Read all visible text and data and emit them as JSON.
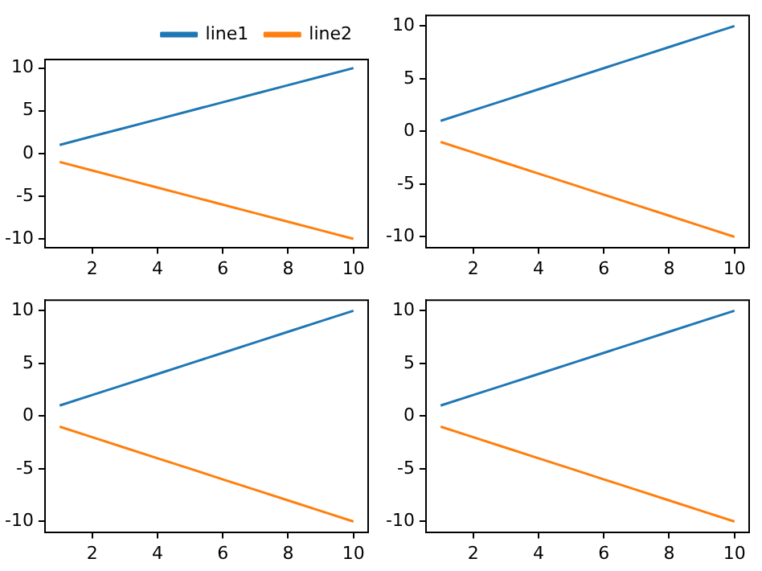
{
  "chart_data": [
    {
      "type": "line",
      "x": [
        1,
        2,
        3,
        4,
        5,
        6,
        7,
        8,
        9,
        10
      ],
      "series": [
        {
          "name": "line1",
          "color": "#1f77b4",
          "values": [
            1,
            2,
            3,
            4,
            5,
            6,
            7,
            8,
            9,
            10
          ]
        },
        {
          "name": "line2",
          "color": "#ff7f0e",
          "values": [
            -1,
            -2,
            -3,
            -4,
            -5,
            -6,
            -7,
            -8,
            -9,
            -10
          ]
        }
      ],
      "xlim": [
        0.55,
        10.45
      ],
      "ylim": [
        -11,
        11
      ],
      "xticks": [
        2,
        4,
        6,
        8,
        10
      ],
      "yticks": [
        -10,
        -5,
        0,
        5,
        10
      ],
      "grid": false,
      "legend": "top right",
      "marker": "none",
      "line_style": "solid"
    },
    {
      "type": "line",
      "x": [
        1,
        2,
        3,
        4,
        5,
        6,
        7,
        8,
        9,
        10
      ],
      "series": [
        {
          "color": "#1f77b4",
          "values": [
            1,
            2,
            3,
            4,
            5,
            6,
            7,
            8,
            9,
            10
          ]
        },
        {
          "color": "#ff7f0e",
          "values": [
            -1,
            -2,
            -3,
            -4,
            -5,
            -6,
            -7,
            -8,
            -9,
            -10
          ]
        }
      ],
      "xlim": [
        0.55,
        10.45
      ],
      "ylim": [
        -11,
        11
      ],
      "xticks": [
        2,
        4,
        6,
        8,
        10
      ],
      "yticks": [
        -10,
        -5,
        0,
        5,
        10
      ],
      "grid": false,
      "marker": "none",
      "line_style": "solid"
    },
    {
      "type": "line",
      "x": [
        1,
        2,
        3,
        4,
        5,
        6,
        7,
        8,
        9,
        10
      ],
      "series": [
        {
          "color": "#1f77b4",
          "values": [
            1,
            2,
            3,
            4,
            5,
            6,
            7,
            8,
            9,
            10
          ]
        },
        {
          "color": "#ff7f0e",
          "values": [
            -1,
            -2,
            -3,
            -4,
            -5,
            -6,
            -7,
            -8,
            -9,
            -10
          ]
        }
      ],
      "xlim": [
        0.55,
        10.45
      ],
      "ylim": [
        -11,
        11
      ],
      "xticks": [
        2,
        4,
        6,
        8,
        10
      ],
      "yticks": [
        -10,
        -5,
        0,
        5,
        10
      ],
      "grid": false,
      "marker": "none",
      "line_style": "solid"
    },
    {
      "type": "line",
      "x": [
        1,
        2,
        3,
        4,
        5,
        6,
        7,
        8,
        9,
        10
      ],
      "series": [
        {
          "color": "#1f77b4",
          "values": [
            1,
            2,
            3,
            4,
            5,
            6,
            7,
            8,
            9,
            10
          ]
        },
        {
          "color": "#ff7f0e",
          "values": [
            -1,
            -2,
            -3,
            -4,
            -5,
            -6,
            -7,
            -8,
            -9,
            -10
          ]
        }
      ],
      "xlim": [
        0.55,
        10.45
      ],
      "ylim": [
        -11,
        11
      ],
      "xticks": [
        2,
        4,
        6,
        8,
        10
      ],
      "yticks": [
        -10,
        -5,
        0,
        5,
        10
      ],
      "grid": false,
      "marker": "none",
      "line_style": "solid"
    }
  ]
}
